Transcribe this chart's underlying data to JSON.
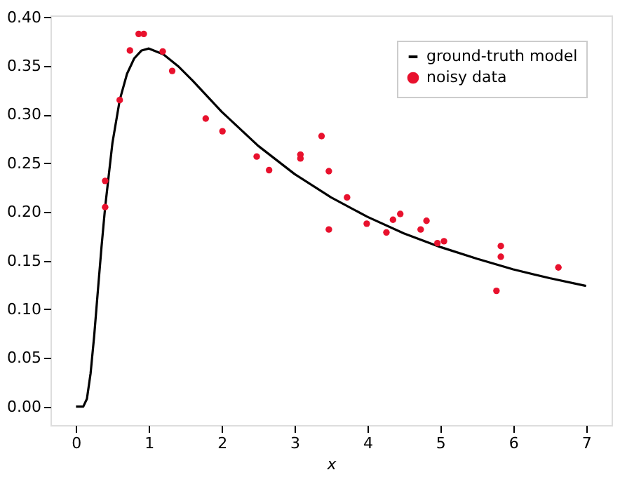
{
  "chart_data": {
    "type": "line",
    "xlabel": "x",
    "xlim": [
      -0.35,
      7.35
    ],
    "ylim": [
      -0.019,
      0.402
    ],
    "xticks": [
      0,
      1,
      2,
      3,
      4,
      5,
      6,
      7
    ],
    "yticks": [
      {
        "value": 0,
        "label": "0.00"
      },
      {
        "value": 0.05,
        "label": "0.05"
      },
      {
        "value": 0.1,
        "label": "0.10"
      },
      {
        "value": 0.15,
        "label": "0.15"
      },
      {
        "value": 0.2,
        "label": "0.20"
      },
      {
        "value": 0.25,
        "label": "0.25"
      },
      {
        "value": 0.3,
        "label": "0.30"
      },
      {
        "value": 0.35,
        "label": "0.35"
      },
      {
        "value": 0.4,
        "label": "0.40"
      }
    ],
    "grid": false,
    "legend": "top right",
    "series": [
      {
        "name": "ground-truth model",
        "color": "#000000",
        "marker": "none",
        "x": [
          0,
          0.05,
          0.1,
          0.15,
          0.2,
          0.25,
          0.3,
          0.35,
          0.4,
          0.5,
          0.6,
          0.7,
          0.8,
          0.9,
          1.0,
          1.2,
          1.4,
          1.6,
          1.8,
          2,
          2.5,
          3,
          3.5,
          4,
          4.5,
          5,
          5.5,
          6,
          6.5,
          7
        ],
        "values": [
          0,
          0,
          0,
          0.008,
          0.034,
          0.073,
          0.119,
          0.164,
          0.205,
          0.271,
          0.315,
          0.342,
          0.358,
          0.366,
          0.368,
          0.362,
          0.35,
          0.335,
          0.319,
          0.303,
          0.268,
          0.239,
          0.215,
          0.195,
          0.178,
          0.164,
          0.152,
          0.141,
          0.132,
          0.124
        ]
      },
      {
        "name": "noisy data",
        "type": "scatter",
        "color": "#e8112d",
        "marker": "circle",
        "x": [
          0.4,
          0.4,
          0.6,
          0.74,
          0.86,
          0.93,
          1.19,
          1.32,
          1.78,
          2.01,
          2.48,
          2.65,
          3.08,
          3.08,
          3.37,
          3.47,
          3.47,
          3.72,
          3.99,
          4.26,
          4.35,
          4.45,
          4.73,
          4.81,
          4.96,
          5.05,
          5.77,
          5.83,
          5.83,
          6.62
        ],
        "values": [
          0.232,
          0.205,
          0.315,
          0.366,
          0.383,
          0.383,
          0.365,
          0.345,
          0.296,
          0.283,
          0.257,
          0.243,
          0.259,
          0.255,
          0.278,
          0.242,
          0.182,
          0.215,
          0.188,
          0.179,
          0.192,
          0.198,
          0.182,
          0.191,
          0.168,
          0.17,
          0.119,
          0.154,
          0.165,
          0.143
        ]
      }
    ]
  }
}
